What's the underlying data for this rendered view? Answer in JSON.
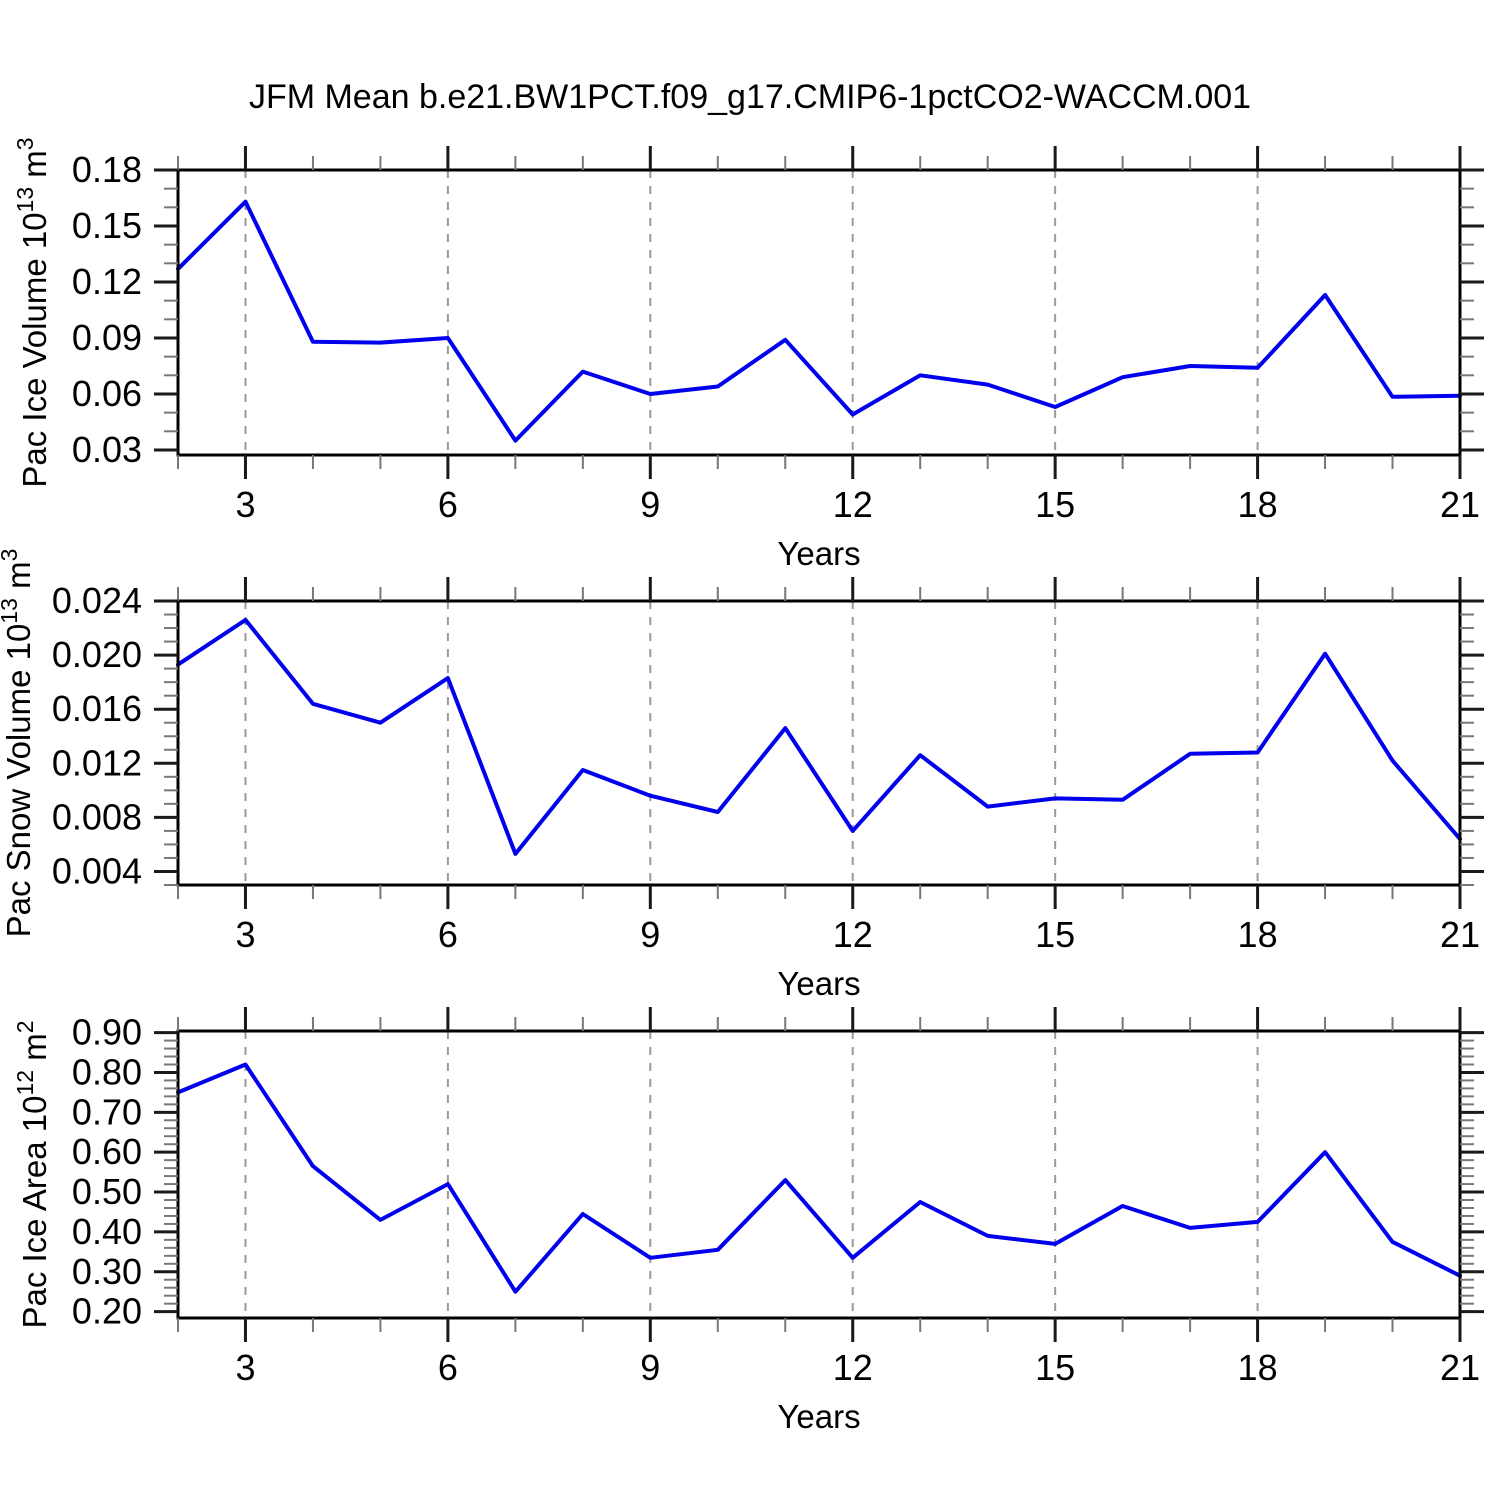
{
  "title": "JFM Mean b.e21.BW1PCT.f09_g17.CMIP6-1pctCO2-WACCM.001",
  "colors": {
    "line": "#0000ee",
    "grid": "#9a9a9a",
    "axis": "#000000"
  },
  "x_axis": {
    "label": "Years",
    "xlim": [
      2,
      21
    ],
    "major_ticks": [
      3,
      6,
      9,
      12,
      15,
      18,
      21
    ],
    "tick_labels": [
      "3",
      "6",
      "9",
      "12",
      "15",
      "18",
      "21"
    ],
    "minor_step": 1,
    "gridlines_at": [
      3,
      6,
      9,
      12,
      15,
      18
    ]
  },
  "chart_data": [
    {
      "type": "line",
      "ylabel": "Pac Ice Volume 10^13 m^3",
      "ylabel_parts": {
        "pre": "Pac Ice Volume 10",
        "sup1": "13",
        "mid": " m",
        "sup2": "3"
      },
      "xlabel": "Years",
      "x": [
        2,
        3,
        4,
        5,
        6,
        7,
        8,
        9,
        10,
        11,
        12,
        13,
        14,
        15,
        16,
        17,
        18,
        19,
        20,
        21
      ],
      "values": [
        0.127,
        0.163,
        0.088,
        0.0875,
        0.09,
        0.035,
        0.072,
        0.06,
        0.064,
        0.089,
        0.049,
        0.07,
        0.065,
        0.053,
        0.069,
        0.075,
        0.074,
        0.113,
        0.0585,
        0.059
      ],
      "ylim": [
        0.0273,
        0.18
      ],
      "yticks": [
        0.03,
        0.06,
        0.09,
        0.12,
        0.15,
        0.18
      ],
      "ytick_labels": [
        "0.03",
        "0.06",
        "0.09",
        "0.12",
        "0.15",
        "0.18"
      ],
      "yminor_step": 0.01,
      "grid": "vertical-dashed",
      "legend": "none"
    },
    {
      "type": "line",
      "ylabel": "Pac Snow Volume 10^13 m^3",
      "ylabel_parts": {
        "pre": "Pac Snow Volume 10",
        "sup1": "13",
        "mid": " m",
        "sup2": "3"
      },
      "xlabel": "Years",
      "x": [
        2,
        3,
        4,
        5,
        6,
        7,
        8,
        9,
        10,
        11,
        12,
        13,
        14,
        15,
        16,
        17,
        18,
        19,
        20,
        21
      ],
      "values": [
        0.0193,
        0.0226,
        0.0164,
        0.015,
        0.0183,
        0.0053,
        0.0115,
        0.0096,
        0.0084,
        0.0146,
        0.007,
        0.0126,
        0.0088,
        0.0094,
        0.0093,
        0.0127,
        0.0128,
        0.0201,
        0.0122,
        0.0064
      ],
      "ylim": [
        0.003,
        0.024
      ],
      "yticks": [
        0.004,
        0.008,
        0.012,
        0.016,
        0.02,
        0.024
      ],
      "ytick_labels": [
        "0.004",
        "0.008",
        "0.012",
        "0.016",
        "0.020",
        "0.024"
      ],
      "yminor_step": 0.001,
      "grid": "vertical-dashed",
      "legend": "none"
    },
    {
      "type": "line",
      "ylabel": "Pac Ice Area 10^12 m^2",
      "ylabel_parts": {
        "pre": "Pac Ice Area 10",
        "sup1": "12",
        "mid": " m",
        "sup2": "2"
      },
      "xlabel": "Years",
      "x": [
        2,
        3,
        4,
        5,
        6,
        7,
        8,
        9,
        10,
        11,
        12,
        13,
        14,
        15,
        16,
        17,
        18,
        19,
        20,
        21
      ],
      "values": [
        0.75,
        0.82,
        0.565,
        0.43,
        0.52,
        0.25,
        0.445,
        0.335,
        0.355,
        0.53,
        0.335,
        0.475,
        0.39,
        0.37,
        0.465,
        0.41,
        0.425,
        0.6,
        0.375,
        0.29
      ],
      "ylim": [
        0.184,
        0.904
      ],
      "yticks": [
        0.2,
        0.3,
        0.4,
        0.5,
        0.6,
        0.7,
        0.8,
        0.9
      ],
      "ytick_labels": [
        "0.20",
        "0.30",
        "0.40",
        "0.50",
        "0.60",
        "0.70",
        "0.80",
        "0.90"
      ],
      "yminor_step": 0.02,
      "grid": "vertical-dashed",
      "legend": "none"
    }
  ]
}
